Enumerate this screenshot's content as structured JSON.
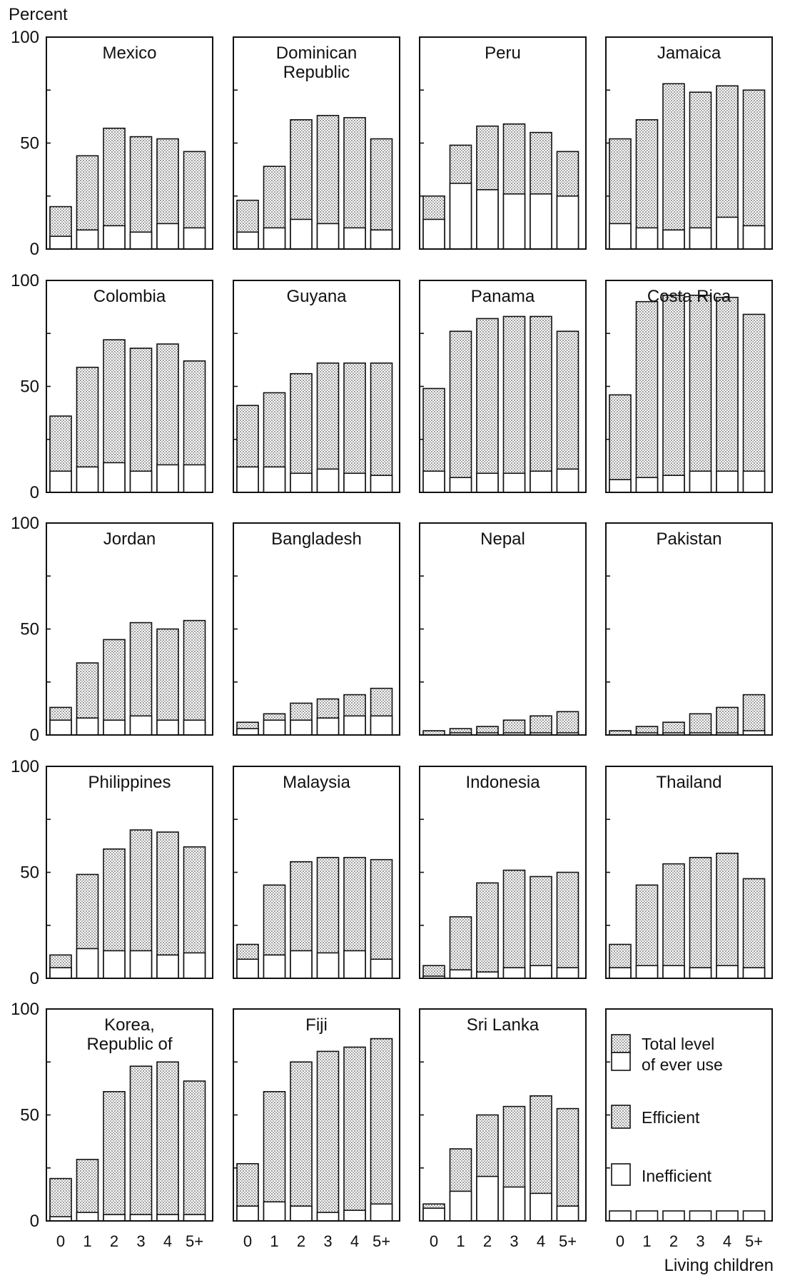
{
  "chart_data": {
    "type": "bar",
    "ylabel": "Percent",
    "xlabel": "Living children",
    "ylim": [
      0,
      100
    ],
    "yticks": [
      "0",
      "50",
      "100"
    ],
    "categories": [
      "0",
      "1",
      "2",
      "3",
      "4",
      "5+"
    ],
    "legend": {
      "total": "Total level of ever use",
      "efficient": "Efficient",
      "inefficient": "Inefficient"
    },
    "panels": [
      {
        "title": "Mexico",
        "total": [
          20,
          44,
          57,
          53,
          52,
          46
        ],
        "inefficient": [
          6,
          9,
          11,
          8,
          12,
          10
        ]
      },
      {
        "title": "Dominican Republic",
        "total": [
          23,
          39,
          61,
          63,
          62,
          52
        ],
        "inefficient": [
          8,
          10,
          14,
          12,
          10,
          9
        ]
      },
      {
        "title": "Peru",
        "total": [
          25,
          49,
          58,
          59,
          55,
          46
        ],
        "inefficient": [
          14,
          31,
          28,
          26,
          26,
          25
        ]
      },
      {
        "title": "Jamaica",
        "total": [
          52,
          61,
          78,
          74,
          77,
          75
        ],
        "inefficient": [
          12,
          10,
          9,
          10,
          15,
          11
        ]
      },
      {
        "title": "Colombia",
        "total": [
          36,
          59,
          72,
          68,
          70,
          62
        ],
        "inefficient": [
          10,
          12,
          14,
          10,
          13,
          13
        ]
      },
      {
        "title": "Guyana",
        "total": [
          41,
          47,
          56,
          61,
          61,
          61
        ],
        "inefficient": [
          12,
          12,
          9,
          11,
          9,
          8
        ]
      },
      {
        "title": "Panama",
        "total": [
          49,
          76,
          82,
          83,
          83,
          76
        ],
        "inefficient": [
          10,
          7,
          9,
          9,
          10,
          11
        ]
      },
      {
        "title": "Costa Rica",
        "total": [
          46,
          90,
          93,
          93,
          92,
          84
        ],
        "inefficient": [
          6,
          7,
          8,
          10,
          10,
          10
        ]
      },
      {
        "title": "Jordan",
        "total": [
          13,
          34,
          45,
          53,
          50,
          54
        ],
        "inefficient": [
          7,
          8,
          7,
          9,
          7,
          7
        ]
      },
      {
        "title": "Bangladesh",
        "total": [
          6,
          10,
          15,
          17,
          19,
          22
        ],
        "inefficient": [
          3,
          7,
          7,
          8,
          9,
          9
        ]
      },
      {
        "title": "Nepal",
        "total": [
          2,
          3,
          4,
          7,
          9,
          11
        ],
        "inefficient": [
          0,
          1,
          1,
          1,
          1,
          1
        ]
      },
      {
        "title": "Pakistan",
        "total": [
          2,
          4,
          6,
          10,
          13,
          19
        ],
        "inefficient": [
          0,
          1,
          1,
          1,
          1,
          2
        ]
      },
      {
        "title": "Philippines",
        "total": [
          11,
          49,
          61,
          70,
          69,
          62
        ],
        "inefficient": [
          5,
          14,
          13,
          13,
          11,
          12
        ]
      },
      {
        "title": "Malaysia",
        "total": [
          16,
          44,
          55,
          57,
          57,
          56
        ],
        "inefficient": [
          9,
          11,
          13,
          12,
          13,
          9
        ]
      },
      {
        "title": "Indonesia",
        "total": [
          6,
          29,
          45,
          51,
          48,
          50
        ],
        "inefficient": [
          1,
          4,
          3,
          5,
          6,
          5
        ]
      },
      {
        "title": "Thailand",
        "total": [
          16,
          44,
          54,
          57,
          59,
          47
        ],
        "inefficient": [
          5,
          6,
          6,
          5,
          6,
          5
        ]
      },
      {
        "title": "Korea, Republic of",
        "total": [
          20,
          29,
          61,
          73,
          75,
          66
        ],
        "inefficient": [
          2,
          4,
          3,
          3,
          3,
          3
        ]
      },
      {
        "title": "Fiji",
        "total": [
          27,
          61,
          75,
          80,
          82,
          86
        ],
        "inefficient": [
          7,
          9,
          7,
          4,
          5,
          8
        ]
      },
      {
        "title": "Sri Lanka",
        "total": [
          8,
          34,
          50,
          54,
          59,
          53
        ],
        "inefficient": [
          6,
          14,
          21,
          16,
          13,
          7
        ]
      }
    ]
  }
}
